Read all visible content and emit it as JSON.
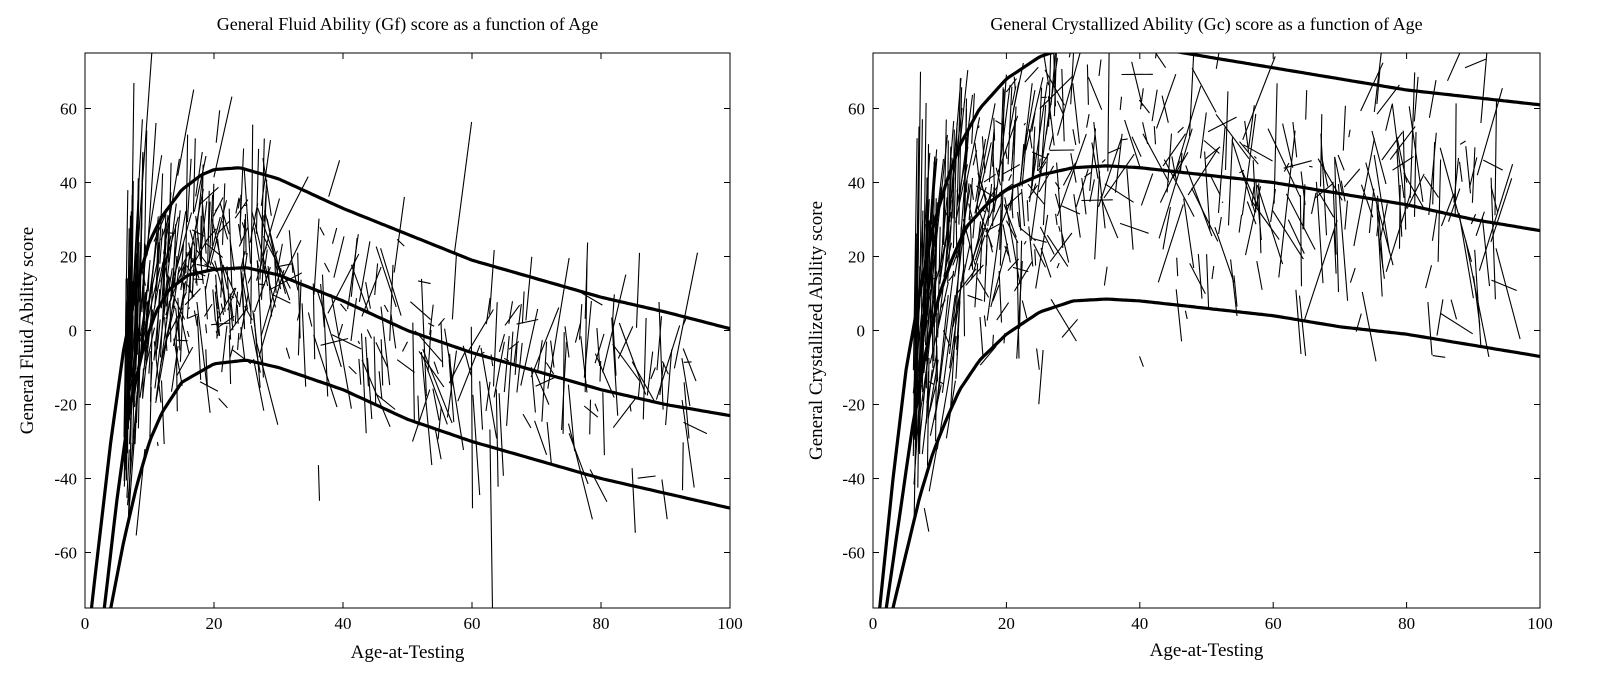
{
  "chart_data": [
    {
      "type": "line",
      "title": "General Fluid Ability (Gf) score as a function of Age",
      "xlabel": "Age-at-Testing",
      "ylabel": "General Fluid Ability score",
      "xlim": [
        0,
        100
      ],
      "ylim": [
        -75,
        75
      ],
      "xticks": [
        0,
        20,
        40,
        60,
        80,
        100
      ],
      "yticks": [
        -60,
        -40,
        -20,
        0,
        20,
        40,
        60
      ],
      "grid": false,
      "line_color": "#000000",
      "series": [
        {
          "role": "upper",
          "x": [
            1,
            4,
            6,
            8,
            10,
            12,
            15,
            18,
            20,
            24,
            30,
            40,
            50,
            60,
            70,
            80,
            90,
            100
          ],
          "y": [
            -75,
            -30,
            -5,
            12,
            24,
            31,
            38,
            42,
            43.5,
            44,
            41,
            33,
            26,
            19,
            14,
            9,
            5,
            0.5
          ]
        },
        {
          "role": "mean",
          "x": [
            3,
            5,
            7,
            9,
            11,
            13,
            16,
            20,
            25,
            30,
            40,
            50,
            60,
            70,
            80,
            90,
            100
          ],
          "y": [
            -75,
            -45,
            -20,
            -5,
            5,
            11,
            15,
            16.5,
            17,
            15,
            8,
            0,
            -6,
            -11,
            -16,
            -20,
            -23
          ]
        },
        {
          "role": "lower",
          "x": [
            4,
            6,
            8,
            10,
            12,
            15,
            20,
            25,
            30,
            40,
            50,
            60,
            70,
            80,
            90,
            100
          ],
          "y": [
            -75,
            -57,
            -42,
            -30,
            -22,
            -14,
            -9,
            -8,
            -10,
            -16,
            -24,
            -30,
            -35,
            -40,
            -44,
            -48
          ]
        }
      ],
      "trajectory_count": 500
    },
    {
      "type": "line",
      "title": "General Crystallized Ability (Gc) score as a function of Age",
      "xlabel": "Age-at-Testing",
      "ylabel": "General Crystallized Ability score",
      "xlim": [
        0,
        100
      ],
      "ylim": [
        -75,
        75
      ],
      "xticks": [
        0,
        20,
        40,
        60,
        80,
        100
      ],
      "yticks": [
        -60,
        -40,
        -20,
        0,
        20,
        40,
        60
      ],
      "grid": false,
      "line_color": "#000000",
      "series": [
        {
          "role": "upper",
          "x": [
            1,
            3,
            5,
            7,
            9,
            11,
            13,
            16,
            20,
            25,
            30,
            40,
            50,
            60,
            70,
            80,
            90,
            100
          ],
          "y": [
            -75,
            -40,
            -10,
            10,
            28,
            40,
            50,
            60,
            68,
            74,
            77,
            77,
            74,
            71,
            68,
            65,
            63,
            61
          ]
        },
        {
          "role": "mean",
          "x": [
            2,
            4,
            6,
            8,
            10,
            12,
            14,
            17,
            20,
            25,
            30,
            35,
            40,
            50,
            60,
            70,
            80,
            90,
            100
          ],
          "y": [
            -75,
            -50,
            -25,
            -5,
            10,
            20,
            28,
            34,
            38,
            42,
            44,
            44.5,
            44,
            42,
            40,
            37,
            34,
            30,
            27
          ]
        },
        {
          "role": "lower",
          "x": [
            3,
            5,
            7,
            9,
            11,
            13,
            16,
            20,
            25,
            30,
            35,
            40,
            50,
            60,
            70,
            80,
            90,
            100
          ],
          "y": [
            -75,
            -60,
            -45,
            -33,
            -24,
            -16,
            -8,
            -1,
            5,
            8,
            8.5,
            8,
            6,
            4,
            1,
            -1,
            -4,
            -7
          ]
        }
      ],
      "trajectory_count": 520
    }
  ]
}
